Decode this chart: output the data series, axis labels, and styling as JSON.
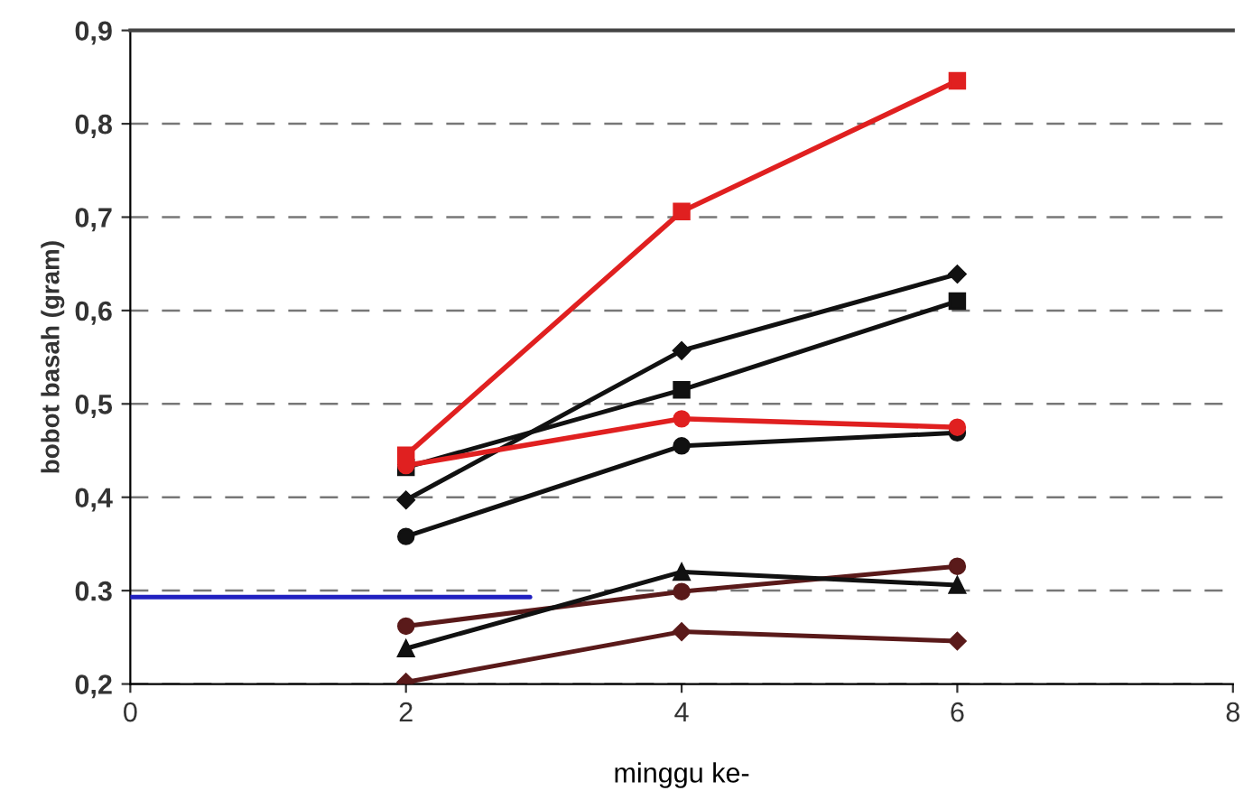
{
  "chart_data": {
    "type": "line",
    "xlabel": "minggu ke-",
    "ylabel": "bobot basah (gram)",
    "x": [
      2,
      4,
      6
    ],
    "xlim": [
      0,
      8
    ],
    "xticks": [
      0,
      2,
      4,
      6,
      8
    ],
    "ylim": [
      0.2,
      0.9
    ],
    "yticks": [
      {
        "value": 0.2,
        "label": "0,2"
      },
      {
        "value": 0.3,
        "label": "0.3"
      },
      {
        "value": 0.4,
        "label": "0,4"
      },
      {
        "value": 0.5,
        "label": "0,5"
      },
      {
        "value": 0.6,
        "label": "0,6"
      },
      {
        "value": 0.7,
        "label": "0,7"
      },
      {
        "value": 0.8,
        "label": "0,8"
      },
      {
        "value": 0.9,
        "label": "0,9"
      }
    ],
    "grid": "y",
    "line_style": "solid",
    "series": [
      {
        "color": "#e02020",
        "marker": "square",
        "values": [
          0.445,
          0.706,
          0.846
        ]
      },
      {
        "color": "#e02020",
        "marker": "circle",
        "values": [
          0.434,
          0.484,
          0.475
        ]
      },
      {
        "color": "#111111",
        "marker": "diamond",
        "values": [
          0.397,
          0.557,
          0.639
        ]
      },
      {
        "color": "#111111",
        "marker": "square",
        "values": [
          0.432,
          0.515,
          0.61
        ]
      },
      {
        "color": "#111111",
        "marker": "circle",
        "values": [
          0.358,
          0.455,
          0.469
        ]
      },
      {
        "color": "#111111",
        "marker": "triangle",
        "values": [
          0.238,
          0.32,
          0.306
        ]
      },
      {
        "color": "#5a1a1a",
        "marker": "circle",
        "values": [
          0.262,
          0.299,
          0.326
        ]
      },
      {
        "color": "#5a1a1a",
        "marker": "diamond",
        "values": [
          0.202,
          0.256,
          0.246
        ]
      },
      {
        "color": "#2020c0",
        "marker": "none",
        "x": [
          0,
          2.9
        ],
        "values": [
          0.293,
          0.293
        ]
      }
    ]
  }
}
